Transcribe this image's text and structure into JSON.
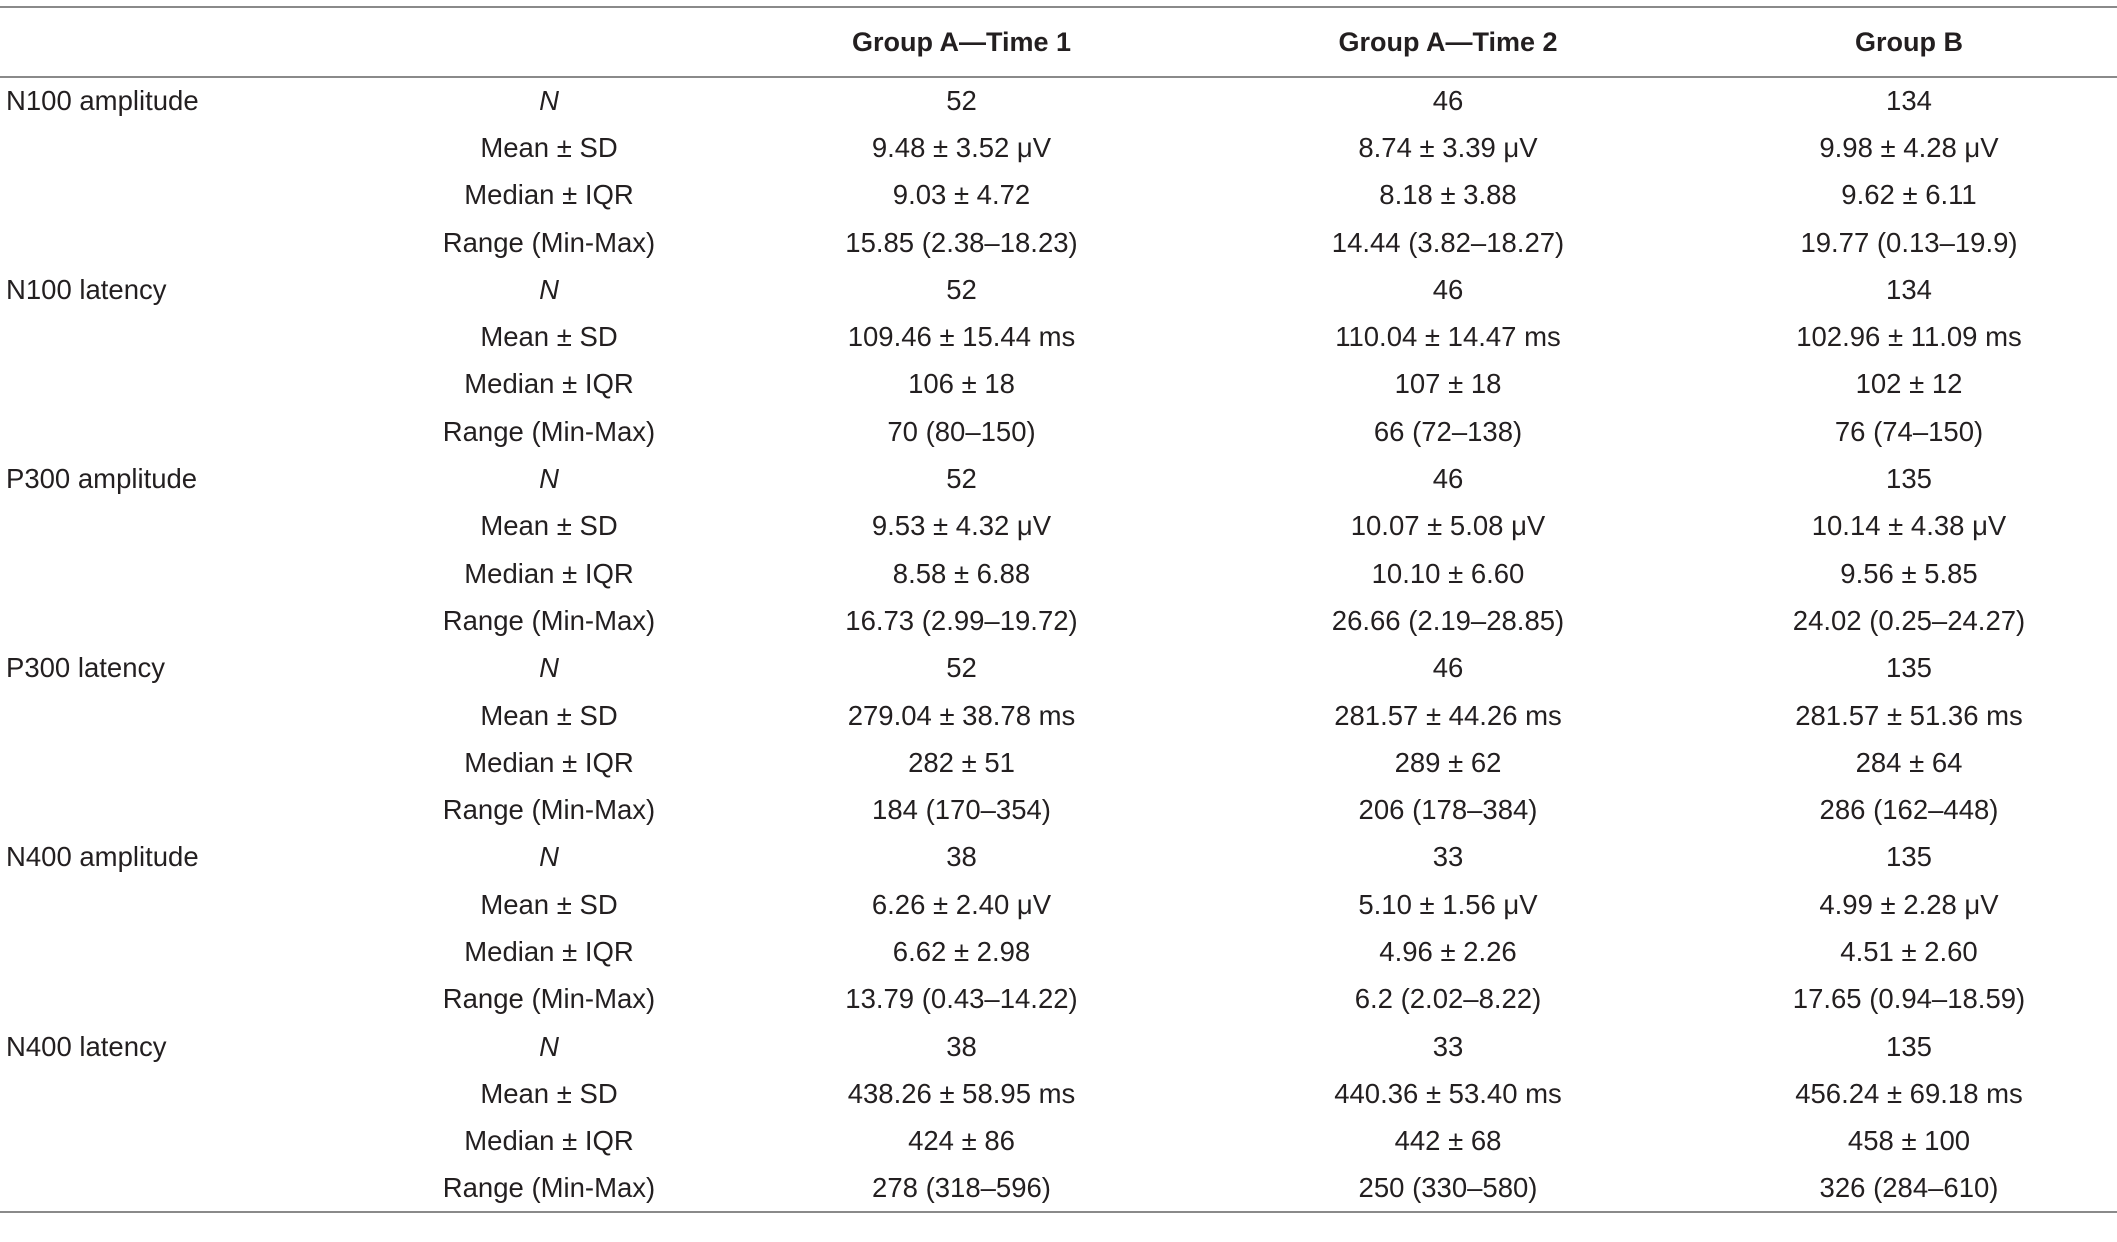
{
  "table": {
    "headers": [
      "",
      "",
      "Group A—Time 1",
      "Group A—Time 2",
      "Group B"
    ],
    "rows": [
      {
        "measure": "N100 amplitude",
        "stat": "N",
        "g1": "52",
        "g2": "46",
        "g3": "134"
      },
      {
        "measure": "",
        "stat": "Mean ± SD",
        "g1": "9.48 ± 3.52 μV",
        "g2": "8.74 ± 3.39 μV",
        "g3": "9.98 ± 4.28 μV"
      },
      {
        "measure": "",
        "stat": "Median ± IQR",
        "g1": "9.03 ± 4.72",
        "g2": "8.18 ± 3.88",
        "g3": "9.62 ± 6.11"
      },
      {
        "measure": "",
        "stat": "Range (Min-Max)",
        "g1": "15.85 (2.38–18.23)",
        "g2": "14.44 (3.82–18.27)",
        "g3": "19.77 (0.13–19.9)"
      },
      {
        "measure": "N100 latency",
        "stat": "N",
        "g1": "52",
        "g2": "46",
        "g3": "134"
      },
      {
        "measure": "",
        "stat": "Mean ± SD",
        "g1": "109.46 ± 15.44 ms",
        "g2": "110.04 ± 14.47 ms",
        "g3": "102.96 ± 11.09 ms"
      },
      {
        "measure": "",
        "stat": "Median ± IQR",
        "g1": "106 ± 18",
        "g2": "107 ± 18",
        "g3": "102 ± 12"
      },
      {
        "measure": "",
        "stat": "Range (Min-Max)",
        "g1": "70 (80–150)",
        "g2": "66 (72–138)",
        "g3": "76 (74–150)"
      },
      {
        "measure": "P300 amplitude",
        "stat": "N",
        "g1": "52",
        "g2": "46",
        "g3": "135"
      },
      {
        "measure": "",
        "stat": "Mean ± SD",
        "g1": "9.53 ± 4.32 μV",
        "g2": "10.07 ± 5.08 μV",
        "g3": "10.14 ± 4.38 μV"
      },
      {
        "measure": "",
        "stat": "Median ± IQR",
        "g1": "8.58 ± 6.88",
        "g2": "10.10 ± 6.60",
        "g3": "9.56 ± 5.85"
      },
      {
        "measure": "",
        "stat": "Range (Min-Max)",
        "g1": "16.73 (2.99–19.72)",
        "g2": "26.66 (2.19–28.85)",
        "g3": "24.02 (0.25–24.27)"
      },
      {
        "measure": "P300 latency",
        "stat": "N",
        "g1": "52",
        "g2": "46",
        "g3": "135"
      },
      {
        "measure": "",
        "stat": "Mean ± SD",
        "g1": "279.04 ± 38.78 ms",
        "g2": "281.57 ± 44.26 ms",
        "g3": "281.57 ± 51.36 ms"
      },
      {
        "measure": "",
        "stat": "Median ± IQR",
        "g1": "282 ± 51",
        "g2": "289 ± 62",
        "g3": "284 ± 64"
      },
      {
        "measure": "",
        "stat": "Range (Min-Max)",
        "g1": "184 (170–354)",
        "g2": "206 (178–384)",
        "g3": "286 (162–448)"
      },
      {
        "measure": "N400 amplitude",
        "stat": "N",
        "g1": "38",
        "g2": "33",
        "g3": "135"
      },
      {
        "measure": "",
        "stat": "Mean ± SD",
        "g1": "6.26 ± 2.40 μV",
        "g2": "5.10 ± 1.56 μV",
        "g3": "4.99 ± 2.28 μV"
      },
      {
        "measure": "",
        "stat": "Median ± IQR",
        "g1": "6.62 ± 2.98",
        "g2": "4.96 ± 2.26",
        "g3": "4.51 ± 2.60"
      },
      {
        "measure": "",
        "stat": "Range (Min-Max)",
        "g1": "13.79 (0.43–14.22)",
        "g2": "6.2 (2.02–8.22)",
        "g3": "17.65 (0.94–18.59)"
      },
      {
        "measure": "N400 latency",
        "stat": "N",
        "g1": "38",
        "g2": "33",
        "g3": "135"
      },
      {
        "measure": "",
        "stat": "Mean ± SD",
        "g1": "438.26 ± 58.95 ms",
        "g2": "440.36 ± 53.40 ms",
        "g3": "456.24 ± 69.18 ms"
      },
      {
        "measure": "",
        "stat": "Median ± IQR",
        "g1": "424 ± 86",
        "g2": "442 ± 68",
        "g3": "458 ± 100"
      },
      {
        "measure": "",
        "stat": "Range (Min-Max)",
        "g1": "278 (318–596)",
        "g2": "250 (330–580)",
        "g3": "326 (284–610)"
      }
    ]
  }
}
